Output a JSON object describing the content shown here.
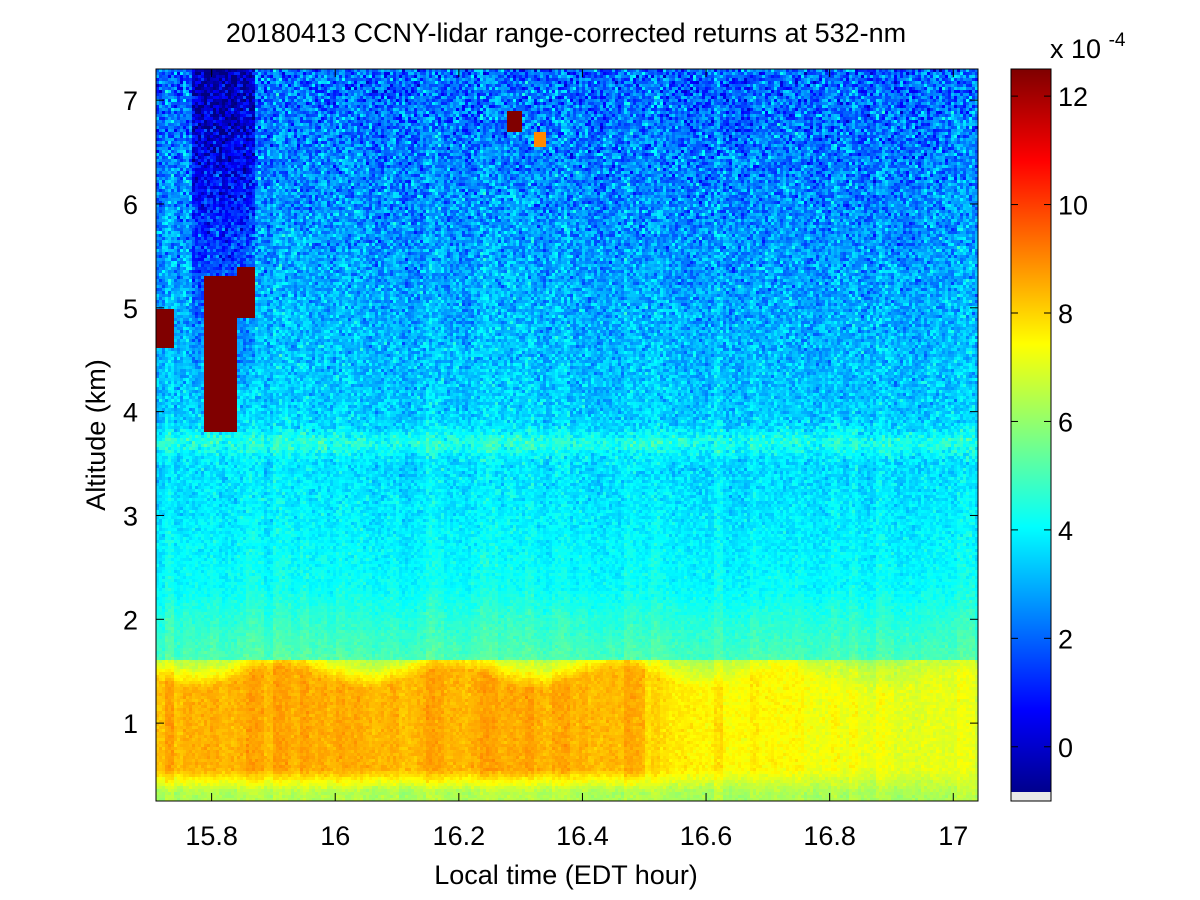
{
  "chart_data": {
    "type": "heatmap",
    "title": "20180413 CCNY-lidar range-corrected returns at 532-nm",
    "xlabel": "Local time (EDT hour)",
    "ylabel": "Altitude (km)",
    "xlim": [
      15.71,
      17.04
    ],
    "ylim": [
      0.25,
      7.3
    ],
    "xticks": [
      15.8,
      16,
      16.2,
      16.4,
      16.6,
      16.8,
      17
    ],
    "xtick_labels": [
      "15.8",
      "16",
      "16.2",
      "16.4",
      "16.6",
      "16.8",
      "17"
    ],
    "yticks": [
      1,
      2,
      3,
      4,
      5,
      6,
      7
    ],
    "ytick_labels": [
      "1",
      "2",
      "3",
      "4",
      "5",
      "6",
      "7"
    ],
    "colorbar": {
      "colormap": "jet",
      "range": [
        -1,
        12.5
      ],
      "scale_label_base": "x 10",
      "scale_label_exp": "-4",
      "ticks": [
        0,
        2,
        4,
        6,
        8,
        10,
        12
      ],
      "tick_labels": [
        "0",
        "2",
        "4",
        "6",
        "8",
        "10",
        "12"
      ]
    },
    "field_description": {
      "boundary_layer": {
        "altitude_km": [
          0.4,
          1.6
        ],
        "value": 8.5
      },
      "free_troposphere_near_2km": {
        "altitude_km": 2.0,
        "value": 4.3
      },
      "layer_near_3_7km": {
        "altitude_km": 3.7,
        "value": 5.0
      },
      "upper_altitude": {
        "altitude_km": 7.0,
        "value": 2.0
      },
      "clouds": [
        {
          "time_range": [
            15.71,
            15.74
          ],
          "altitude_range": [
            4.6,
            5.0
          ],
          "value": 12.5
        },
        {
          "time_range": [
            15.79,
            15.84
          ],
          "altitude_range": [
            3.8,
            5.3
          ],
          "value": 12.5
        },
        {
          "time_range": [
            15.84,
            15.87
          ],
          "altitude_range": [
            4.9,
            5.4
          ],
          "value": 12.5
        },
        {
          "time_range": [
            16.28,
            16.3
          ],
          "altitude_range": [
            6.7,
            6.9
          ],
          "value": 12.5
        },
        {
          "time_range": [
            16.32,
            16.34
          ],
          "altitude_range": [
            6.55,
            6.7
          ],
          "value": 9.0
        }
      ]
    }
  }
}
